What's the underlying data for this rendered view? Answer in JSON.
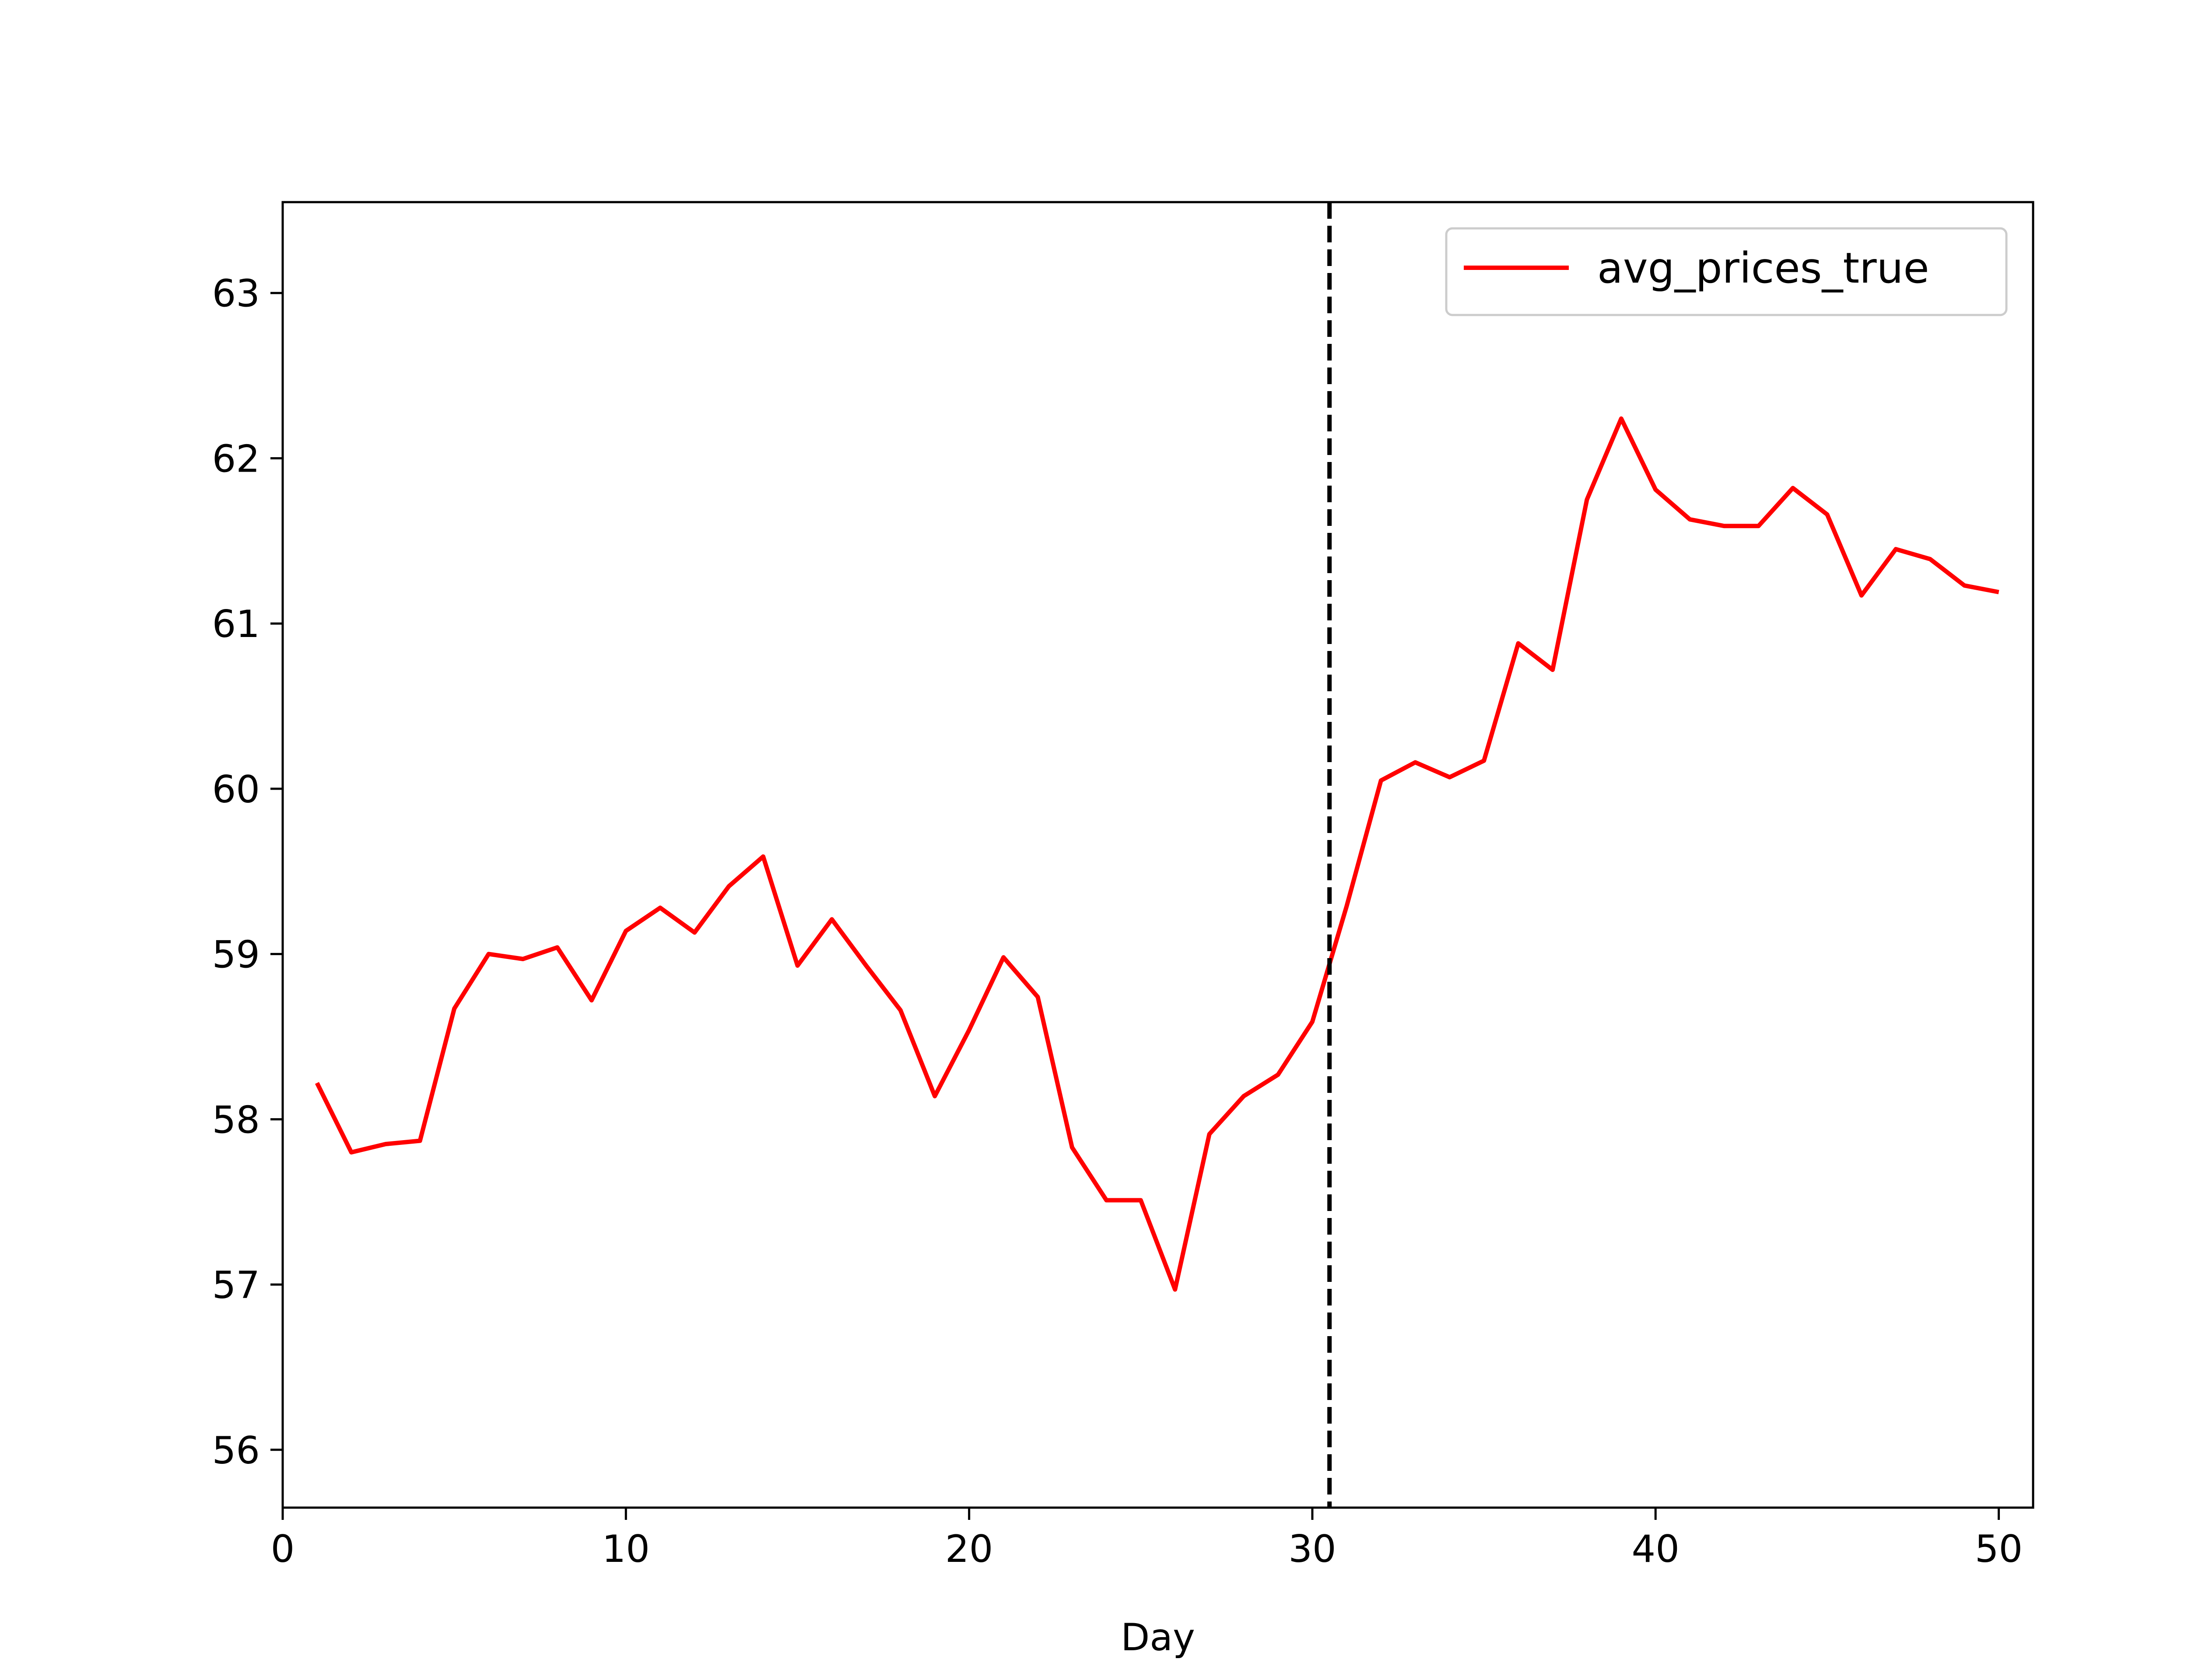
{
  "chart_data": {
    "type": "line",
    "title": "",
    "xlabel": "Day",
    "ylabel": "",
    "xlim": [
      0,
      51
    ],
    "ylim": [
      55.65,
      63.55
    ],
    "xticks": [
      0,
      10,
      20,
      30,
      40,
      50
    ],
    "yticks": [
      56,
      57,
      58,
      59,
      60,
      61,
      62,
      63
    ],
    "grid": false,
    "legend": {
      "position": "top-right"
    },
    "vline": {
      "x": 30.5,
      "color": "#000000",
      "style": "dashed"
    },
    "series": [
      {
        "name": "avg_prices_true",
        "color": "#ff0000",
        "x": [
          1,
          2,
          3,
          4,
          5,
          6,
          7,
          8,
          9,
          10,
          11,
          12,
          13,
          14,
          15,
          16,
          17,
          18,
          19,
          20,
          21,
          22,
          23,
          24,
          25,
          26,
          27,
          28,
          29,
          30,
          31,
          32,
          33,
          34,
          35,
          36,
          37,
          38,
          39,
          40,
          41,
          42,
          43,
          44,
          45,
          46,
          47,
          48,
          49,
          50
        ],
        "y": [
          58.22,
          57.8,
          57.85,
          57.87,
          58.67,
          59.0,
          58.97,
          59.04,
          58.72,
          59.14,
          59.28,
          59.13,
          59.41,
          59.59,
          58.93,
          59.21,
          58.93,
          58.66,
          58.14,
          58.54,
          58.98,
          58.74,
          57.83,
          57.51,
          57.51,
          56.97,
          57.91,
          58.14,
          58.27,
          58.59,
          59.29,
          60.05,
          60.16,
          60.07,
          60.17,
          60.88,
          60.72,
          61.75,
          62.24,
          61.81,
          61.63,
          61.59,
          61.59,
          61.82,
          61.66,
          61.17,
          61.45,
          61.39,
          61.23,
          61.19
        ]
      }
    ]
  }
}
